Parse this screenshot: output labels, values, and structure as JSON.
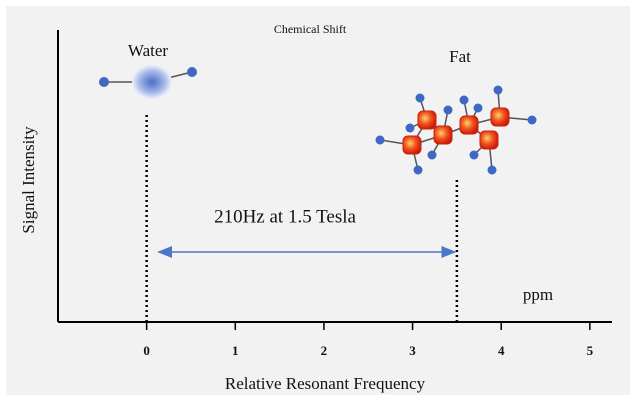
{
  "title": "Chemical Shift",
  "x_axis": {
    "label": "Relative Resonant Frequency",
    "ticks": [
      0,
      1,
      2,
      3,
      4,
      5
    ],
    "lim": [
      -1,
      5.25
    ],
    "unit": "ppm"
  },
  "y_axis": {
    "label": "Signal Intensity"
  },
  "peaks": [
    {
      "label": "Water",
      "position": 0
    },
    {
      "label": "Fat",
      "position": 3.5
    }
  ],
  "separation": {
    "label": "210Hz at 1.5 Tesla"
  }
}
